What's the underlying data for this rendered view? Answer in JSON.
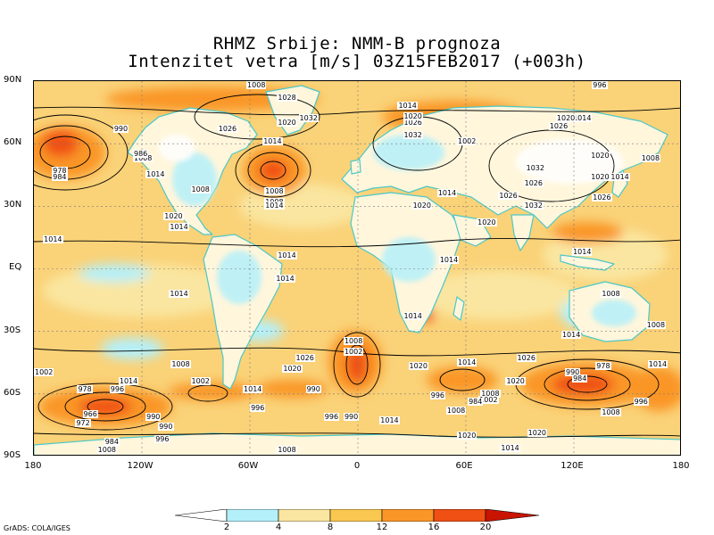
{
  "title": {
    "line1": "RHMZ Srbije: NMM-B prognoza",
    "line2": "Intenzitet vetra [m/s] 03Z15FEB2017 (+003h)"
  },
  "axes": {
    "lat_labels": [
      "90N",
      "60N",
      "30N",
      "EQ",
      "30S",
      "60S",
      "90S"
    ],
    "lon_labels": [
      "180",
      "120W",
      "60W",
      "0",
      "60E",
      "120E",
      "180"
    ]
  },
  "legend": {
    "ticks": [
      "2",
      "4",
      "8",
      "12",
      "16",
      "20"
    ],
    "colors": [
      "#ffffff",
      "#b4f0fa",
      "#fae6a0",
      "#fac850",
      "#fa9628",
      "#f05014",
      "#c81400"
    ]
  },
  "colors": {
    "land": "#fff6dc",
    "coast": "#4cc8c8",
    "isobar": "#000000",
    "ocean_light": "#fae6a0"
  },
  "isobars": [
    {
      "label": "1008",
      "lon": -57,
      "lat": 88
    },
    {
      "label": "1028",
      "lon": -40,
      "lat": 82
    },
    {
      "label": "1014",
      "lon": 27,
      "lat": 78
    },
    {
      "label": "1020",
      "lon": -40,
      "lat": 70
    },
    {
      "label": "1032",
      "lon": -28,
      "lat": 72
    },
    {
      "label": "1026",
      "lon": -73,
      "lat": 67
    },
    {
      "label": "990",
      "lon": -131,
      "lat": 67
    },
    {
      "label": "1026",
      "lon": 30,
      "lat": 70
    },
    {
      "label": "1032",
      "lon": 30,
      "lat": 64
    },
    {
      "label": "1020",
      "lon": 30,
      "lat": 73
    },
    {
      "label": "996",
      "lon": 135,
      "lat": 88
    },
    {
      "label": "1014",
      "lon": 124,
      "lat": 72
    },
    {
      "label": "1026",
      "lon": 111,
      "lat": 68
    },
    {
      "label": "1020",
      "lon": 115,
      "lat": 72
    },
    {
      "label": "1014",
      "lon": -48,
      "lat": 61
    },
    {
      "label": "1008",
      "lon": -120,
      "lat": 53
    },
    {
      "label": "1014",
      "lon": -113,
      "lat": 45
    },
    {
      "label": "978",
      "lon": -165,
      "lat": 47
    },
    {
      "label": "984",
      "lon": -165,
      "lat": 44
    },
    {
      "label": "986",
      "lon": -120,
      "lat": 55
    },
    {
      "label": "1002",
      "lon": 60,
      "lat": 61
    },
    {
      "label": "1008",
      "lon": -88,
      "lat": 38
    },
    {
      "label": "1008",
      "lon": -47,
      "lat": 37
    },
    {
      "label": "1008",
      "lon": -47,
      "lat": 32
    },
    {
      "label": "1014",
      "lon": -47,
      "lat": 30
    },
    {
      "label": "1014",
      "lon": 49,
      "lat": 36
    },
    {
      "label": "1032",
      "lon": 98,
      "lat": 48
    },
    {
      "label": "1026",
      "lon": 97,
      "lat": 41
    },
    {
      "label": "1026",
      "lon": 83,
      "lat": 35
    },
    {
      "label": "1032",
      "lon": 97,
      "lat": 30
    },
    {
      "label": "1020",
      "lon": 134,
      "lat": 54
    },
    {
      "label": "1020",
      "lon": 134,
      "lat": 44
    },
    {
      "label": "1014",
      "lon": 145,
      "lat": 44
    },
    {
      "label": "1008",
      "lon": 162,
      "lat": 53
    },
    {
      "label": "1026",
      "lon": 135,
      "lat": 34
    },
    {
      "label": "1020",
      "lon": -103,
      "lat": 25
    },
    {
      "label": "1014",
      "lon": -100,
      "lat": 20
    },
    {
      "label": "1020",
      "lon": 35,
      "lat": 30
    },
    {
      "label": "1020",
      "lon": 71,
      "lat": 22
    },
    {
      "label": "1014",
      "lon": -170,
      "lat": 14
    },
    {
      "label": "1014",
      "lon": -40,
      "lat": 6
    },
    {
      "label": "1014",
      "lon": 50,
      "lat": 4
    },
    {
      "label": "1014",
      "lon": 124,
      "lat": 8
    },
    {
      "label": "1014",
      "lon": -41,
      "lat": -5
    },
    {
      "label": "1014",
      "lon": -100,
      "lat": -12
    },
    {
      "label": "1008",
      "lon": 140,
      "lat": -12
    },
    {
      "label": "1014",
      "lon": 30,
      "lat": -23
    },
    {
      "label": "1014",
      "lon": 118,
      "lat": -32
    },
    {
      "label": "1008",
      "lon": 165,
      "lat": -27
    },
    {
      "label": "1008",
      "lon": -3,
      "lat": -35
    },
    {
      "label": "1002",
      "lon": -3,
      "lat": -40
    },
    {
      "label": "1026",
      "lon": -30,
      "lat": -43
    },
    {
      "label": "1020",
      "lon": -37,
      "lat": -48
    },
    {
      "label": "1008",
      "lon": -99,
      "lat": -46
    },
    {
      "label": "1002",
      "lon": -88,
      "lat": -54
    },
    {
      "label": "1014",
      "lon": -128,
      "lat": -54
    },
    {
      "label": "996",
      "lon": -133,
      "lat": -58
    },
    {
      "label": "978",
      "lon": -151,
      "lat": -58
    },
    {
      "label": "1002",
      "lon": -178,
      "lat": -50
    },
    {
      "label": "1020",
      "lon": 33,
      "lat": -47
    },
    {
      "label": "1014",
      "lon": 60,
      "lat": -45
    },
    {
      "label": "1026",
      "lon": 93,
      "lat": -43
    },
    {
      "label": "1020",
      "lon": 87,
      "lat": -54
    },
    {
      "label": "990",
      "lon": 120,
      "lat": -50
    },
    {
      "label": "984",
      "lon": 124,
      "lat": -53
    },
    {
      "label": "978",
      "lon": 137,
      "lat": -47
    },
    {
      "label": "1014",
      "lon": 166,
      "lat": -46
    },
    {
      "label": "996",
      "lon": 45,
      "lat": -61
    },
    {
      "label": "1008",
      "lon": 73,
      "lat": -60
    },
    {
      "label": "1002",
      "lon": 72,
      "lat": -63
    },
    {
      "label": "984",
      "lon": 66,
      "lat": -64
    },
    {
      "label": "1014",
      "lon": -59,
      "lat": -58
    },
    {
      "label": "990",
      "lon": -24,
      "lat": -58
    },
    {
      "label": "996",
      "lon": -55,
      "lat": -67
    },
    {
      "label": "996",
      "lon": 158,
      "lat": -64
    },
    {
      "label": "1008",
      "lon": 140,
      "lat": -69
    },
    {
      "label": "1008",
      "lon": 54,
      "lat": -68
    },
    {
      "label": "996",
      "lon": -14,
      "lat": -71
    },
    {
      "label": "990",
      "lon": -3,
      "lat": -71
    },
    {
      "label": "1014",
      "lon": 17,
      "lat": -73
    },
    {
      "label": "990",
      "lon": -113,
      "lat": -71
    },
    {
      "label": "990",
      "lon": -106,
      "lat": -76
    },
    {
      "label": "996",
      "lon": -108,
      "lat": -82
    },
    {
      "label": "966",
      "lon": -148,
      "lat": -70
    },
    {
      "label": "972",
      "lon": -152,
      "lat": -74
    },
    {
      "label": "984",
      "lon": -136,
      "lat": -83
    },
    {
      "label": "1008",
      "lon": -140,
      "lat": -87
    },
    {
      "label": "1008",
      "lon": -40,
      "lat": -87
    },
    {
      "label": "1020",
      "lon": 60,
      "lat": -80
    },
    {
      "label": "1020",
      "lon": 99,
      "lat": -79
    },
    {
      "label": "1014",
      "lon": 84,
      "lat": -86
    }
  ],
  "credit": "GrADS: COLA/IGES"
}
